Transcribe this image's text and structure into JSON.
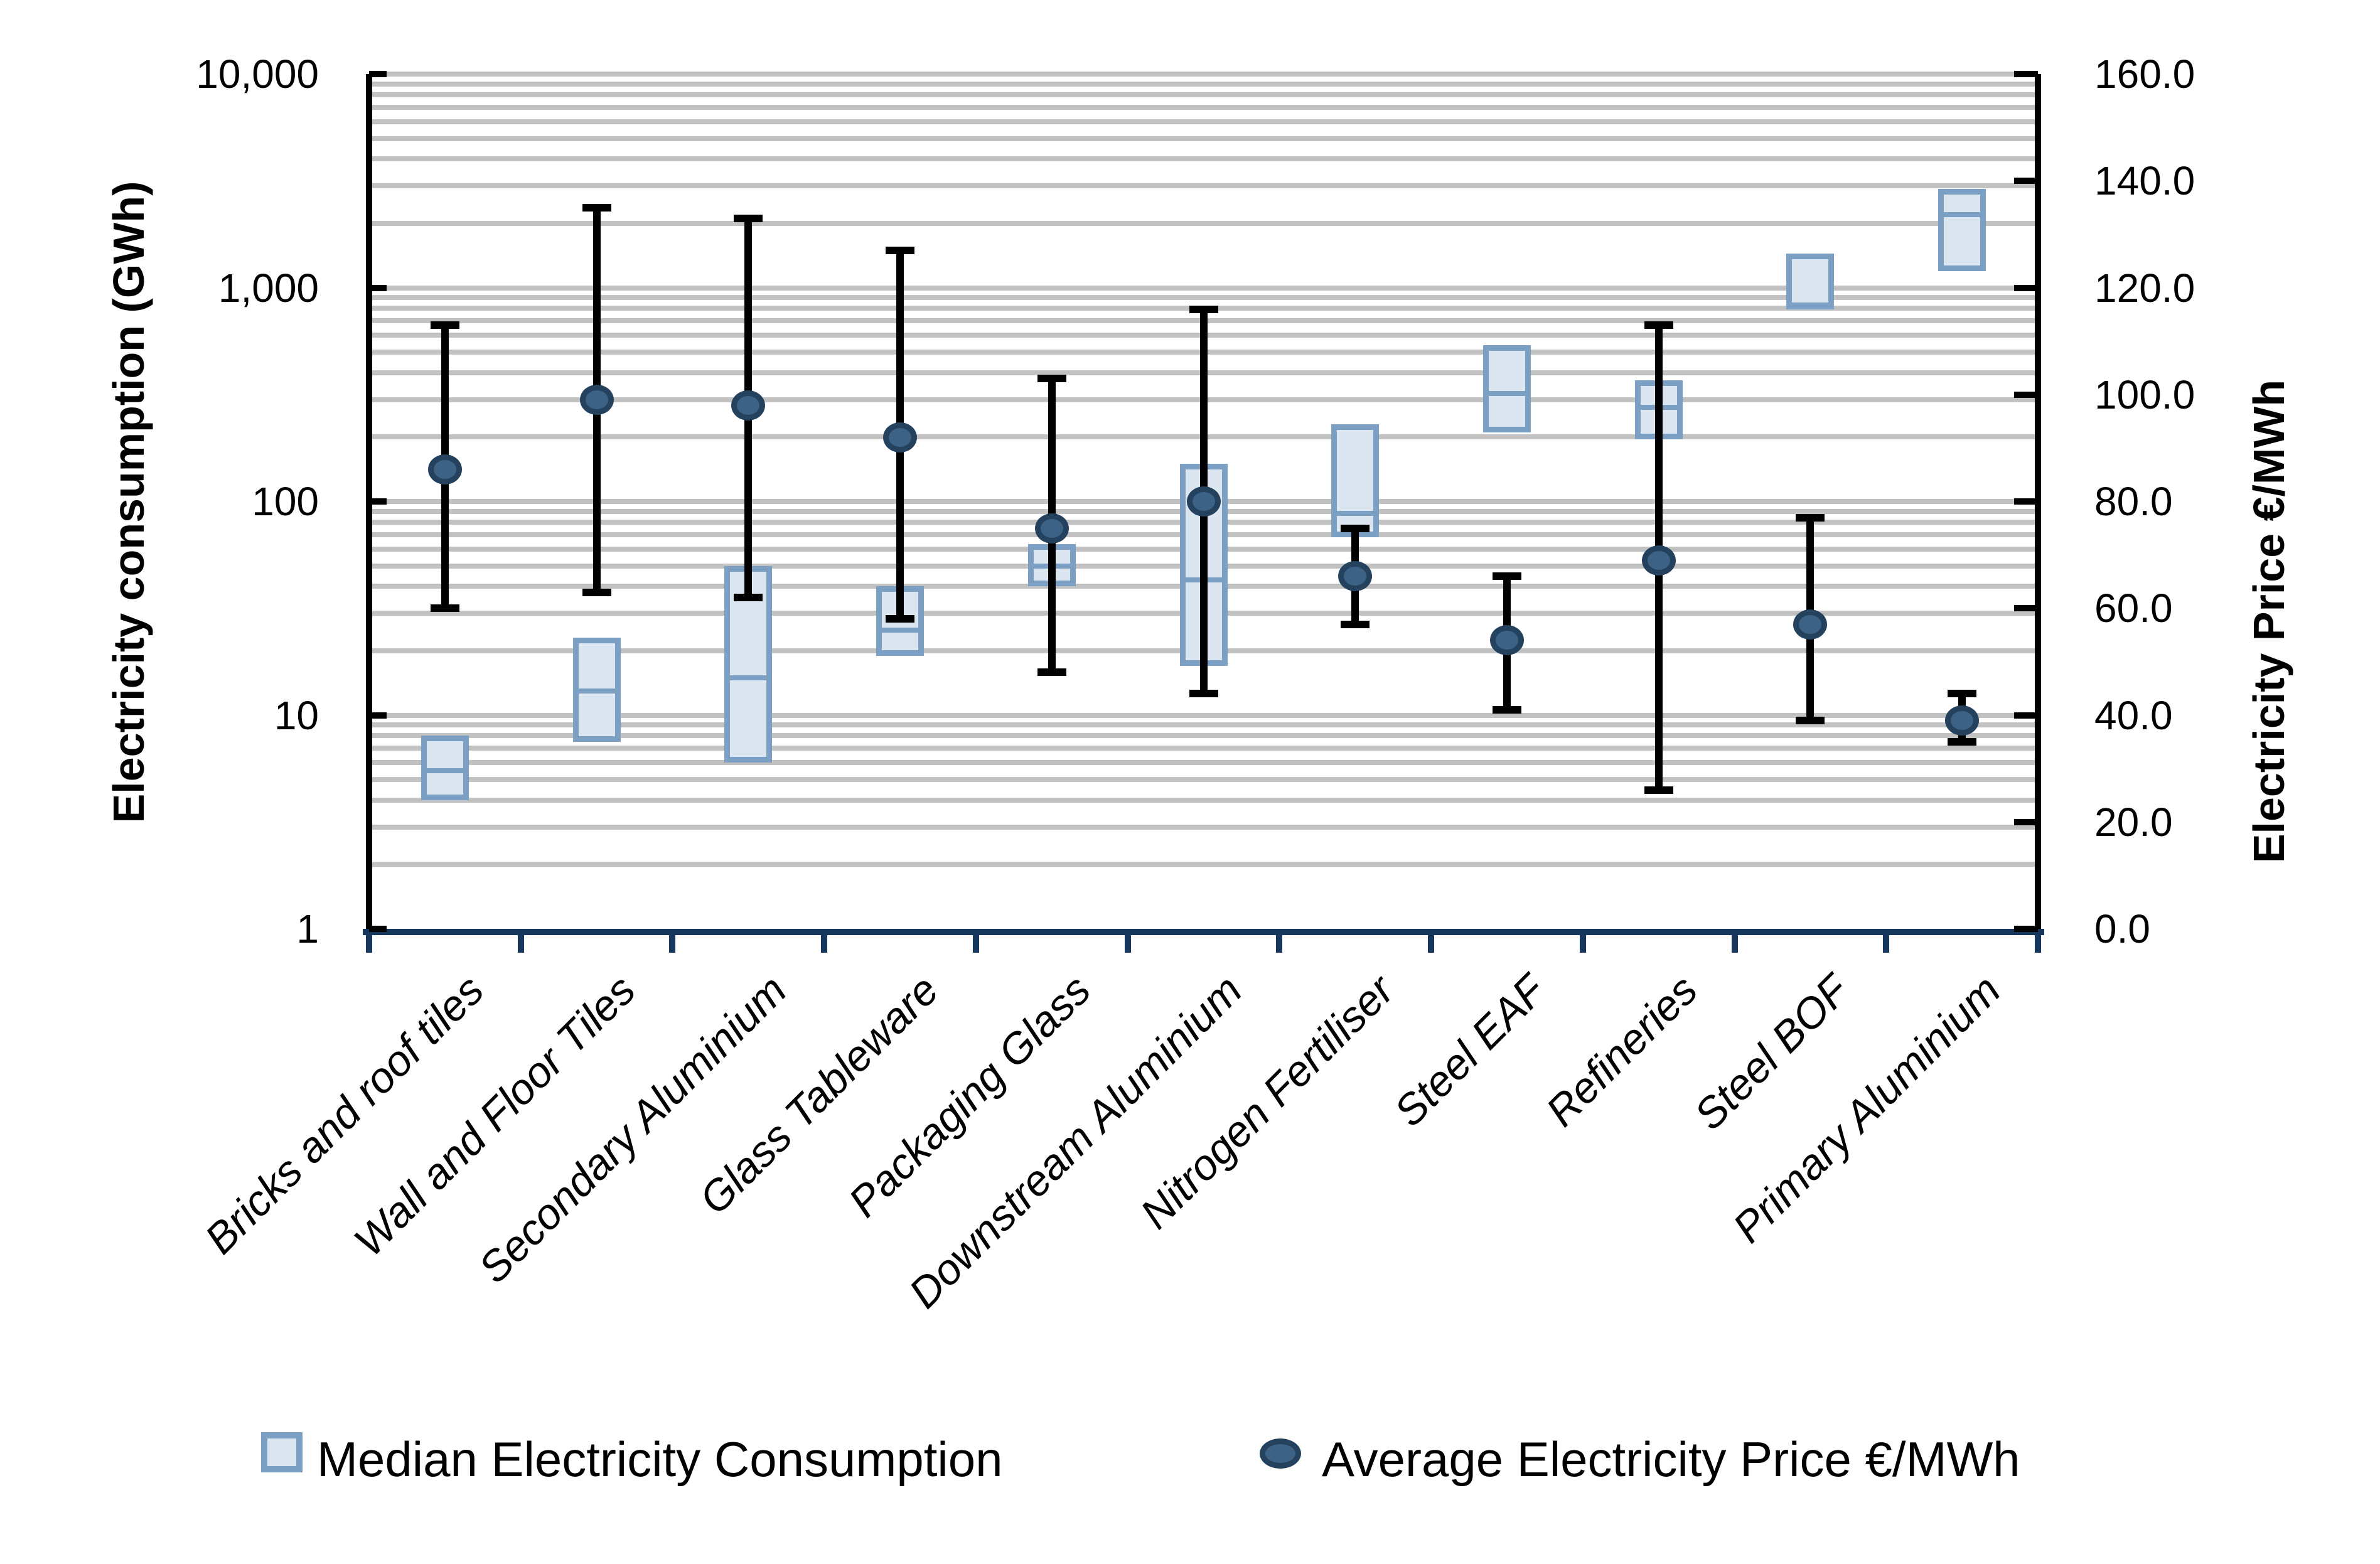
{
  "chart_data": {
    "type": "combo-box-scatter",
    "title": "",
    "categories": [
      "Bricks and roof tiles",
      "Wall and Floor Tiles",
      "Secondary Aluminium",
      "Glass Tableware",
      "Packaging Glass",
      "Downstream Aluminium",
      "Nitrogen Fertiliser",
      "Steel EAF",
      "Refineries",
      "Steel BOF",
      "Primary Aluminium"
    ],
    "axes": {
      "left": {
        "title": "Electricity consumption  (GWh)",
        "scale": "log",
        "min": 1,
        "max": 10000,
        "tick_labels": [
          "10,000",
          "1,000",
          "100",
          "10",
          "1"
        ],
        "tick_values": [
          10000,
          1000,
          100,
          10,
          1
        ],
        "unit": "GWh"
      },
      "right": {
        "title": "Electricity Price €/MWh",
        "scale": "linear",
        "min": 0,
        "max": 160,
        "tick_labels": [
          "160.0",
          "140.0",
          "120.0",
          "100.0",
          "80.0",
          "60.0",
          "40.0",
          "20.0",
          "0.0"
        ],
        "tick_values": [
          160,
          140,
          120,
          100,
          80,
          60,
          40,
          20,
          0
        ],
        "unit": "€/MWh"
      },
      "bottom": {
        "label_rotation_deg": 45,
        "label_style": "italic"
      }
    },
    "series": [
      {
        "name": "Median Electricity Consumption",
        "marker": "box",
        "axis": "left",
        "unit": "GWh",
        "values": [
          {
            "q1": 4,
            "median": 5.5,
            "q3": 8
          },
          {
            "q1": 7.5,
            "median": 13,
            "q3": 23
          },
          {
            "q1": 6,
            "median": 15,
            "q3": 50
          },
          {
            "q1": 19,
            "median": 25,
            "q3": 40
          },
          {
            "q1": 40,
            "median": 50,
            "q3": 63
          },
          {
            "q1": 17,
            "median": 43,
            "q3": 150
          },
          {
            "q1": 68,
            "median": 88,
            "q3": 230
          },
          {
            "q1": 210,
            "median": 320,
            "q3": 540
          },
          {
            "q1": 195,
            "median": 275,
            "q3": 370
          },
          {
            "q1": 790,
            "median": 830,
            "q3": 1450
          },
          {
            "q1": 1200,
            "median": 2200,
            "q3": 2900
          }
        ]
      },
      {
        "name": "Average Electricity Price €/MWh",
        "marker": "circle-with-errorbar",
        "axis": "right",
        "unit": "€/MWh",
        "values": [
          {
            "low": 60,
            "avg": 86,
            "high": 113
          },
          {
            "low": 63,
            "avg": 99,
            "high": 135
          },
          {
            "low": 62,
            "avg": 98,
            "high": 133
          },
          {
            "low": 58,
            "avg": 92,
            "high": 127
          },
          {
            "low": 48,
            "avg": 75,
            "high": 103
          },
          {
            "low": 44,
            "avg": 80,
            "high": 116
          },
          {
            "low": 57,
            "avg": 66,
            "high": 75
          },
          {
            "low": 41,
            "avg": 54,
            "high": 66
          },
          {
            "low": 26,
            "avg": 69,
            "high": 113
          },
          {
            "low": 39,
            "avg": 57,
            "high": 77
          },
          {
            "low": 35,
            "avg": 39,
            "high": 44
          }
        ]
      }
    ],
    "legend": {
      "position": "bottom",
      "items": [
        "Median Electricity Consumption",
        "Average Electricity Price €/MWh"
      ]
    },
    "grid": {
      "horizontal": "log-minor-and-major",
      "vertical": "none"
    }
  },
  "colors": {
    "box_fill": "#dce6f1",
    "box_border": "#7ba0c4",
    "circle_fill": "#3c6385",
    "circle_border": "#24425e",
    "errorbar": "#000000",
    "gridline": "#c2c2c2",
    "category_axis": "#17375d",
    "value_axis": "#000000",
    "background": "#ffffff",
    "text": "#000000"
  }
}
